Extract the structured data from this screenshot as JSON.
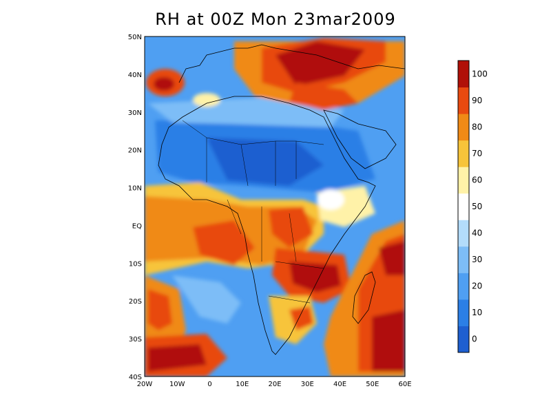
{
  "title": "RH at 00Z Mon 23mar2009",
  "colors": {
    "background": "#ffffff",
    "frame": "#000000",
    "coastline": "#000000"
  },
  "map": {
    "lon_range": [
      -20,
      60
    ],
    "lat_range": [
      -40,
      50
    ],
    "x_ticks": [
      "20W",
      "10W",
      "0",
      "10E",
      "20E",
      "30E",
      "40E",
      "50E",
      "60E"
    ],
    "y_ticks": [
      "50N",
      "40N",
      "30N",
      "20N",
      "10N",
      "EQ",
      "10S",
      "20S",
      "30S",
      "40S"
    ]
  },
  "colorbar": {
    "labels": [
      "0",
      "10",
      "20",
      "30",
      "40",
      "50",
      "60",
      "70",
      "80",
      "90",
      "100"
    ],
    "colors": [
      "#1e5fd0",
      "#2b7fe6",
      "#4f9ff2",
      "#7dbdf7",
      "#b3dcfb",
      "#ffffff",
      "#fff2a8",
      "#f7c43a",
      "#f08a16",
      "#e84a10",
      "#b01008"
    ]
  }
}
